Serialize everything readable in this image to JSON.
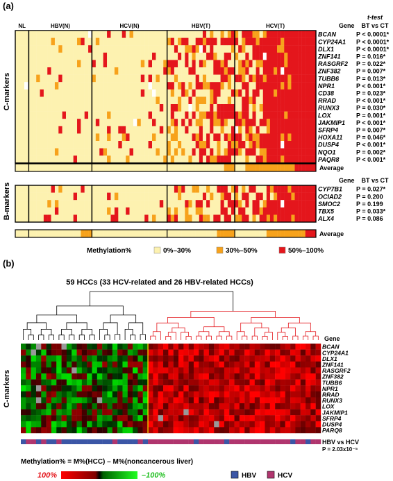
{
  "panel_a": {
    "label": "(a)",
    "group_labels": [
      "NL",
      "HBV(N)",
      "HCV(N)",
      "HBV(T)",
      "HCV(T)"
    ],
    "c_axis_label": "C-markers",
    "b_axis_label": "B-markers",
    "c_header_gene": "Gene",
    "c_header_test_title": "t-test",
    "c_header_test": "BT vs CT",
    "b_header_gene": "Gene",
    "b_header_test": "BT vs CT",
    "average_label": "Average",
    "c_genes": [
      {
        "gene": "BCAN",
        "p": "P < 0.0001*"
      },
      {
        "gene": "CYP24A1",
        "p": "P < 0.0001*"
      },
      {
        "gene": "DLX1",
        "p": "P < 0.0001*"
      },
      {
        "gene": "ZNF141",
        "p": "P = 0.016*"
      },
      {
        "gene": "RASGRF2",
        "p": "P = 0.022*"
      },
      {
        "gene": "ZNF382",
        "p": "P = 0.007*"
      },
      {
        "gene": "TUBB6",
        "p": "P = 0.013*"
      },
      {
        "gene": "NPR1",
        "p": "P < 0.001*"
      },
      {
        "gene": "CD38",
        "p": "P = 0.023*"
      },
      {
        "gene": "RRAD",
        "p": "P < 0.001*"
      },
      {
        "gene": "RUNX3",
        "p": "P = 0.030*"
      },
      {
        "gene": "LOX",
        "p": "P = 0.001*"
      },
      {
        "gene": "JAKMIP1",
        "p": "P < 0.001*"
      },
      {
        "gene": "SFRP4",
        "p": "P = 0.007*"
      },
      {
        "gene": "HOXA11",
        "p": "P = 0.046*"
      },
      {
        "gene": "DUSP4",
        "p": "P < 0.001*"
      },
      {
        "gene": "NQO1",
        "p": "P = 0.002*"
      },
      {
        "gene": "PAQR8",
        "p": "P < 0.001*"
      }
    ],
    "b_genes": [
      {
        "gene": "CYP7B1",
        "p": "P = 0.027*"
      },
      {
        "gene": "OCIAD2",
        "p": "P = 0.200"
      },
      {
        "gene": "SMOC2",
        "p": "P = 0.199"
      },
      {
        "gene": "TBX5",
        "p": "P = 0.033*"
      },
      {
        "gene": "ALX4",
        "p": "P = 0.086"
      }
    ],
    "legend_title": "Methylation%",
    "legend": [
      {
        "label": "0%–30%",
        "color": "#fdf2b0"
      },
      {
        "label": "30%–50%",
        "color": "#f7a21b"
      },
      {
        "label": "50%–100%",
        "color": "#e4161c"
      }
    ]
  },
  "panel_b": {
    "label": "(b)",
    "title": "59 HCCs (33 HCV-related and 26 HBV-related HCCs)",
    "axis_label": "C-markers",
    "gene_header": "Gene",
    "genes": [
      "BCAN",
      "CYP24A1",
      "DLX1",
      "ZNF141",
      "RASGRF2",
      "ZNF382",
      "TUBB6",
      "NPR1",
      "RRAD",
      "RUNX3",
      "LOX",
      "JAKMIP1",
      "SFRP4",
      "DUSP4",
      "PARQ8"
    ],
    "group_bar_label": "HBV vs HCV",
    "group_bar_p": "P = 2.03x10⁻⁵",
    "formula": "Methylation% = M%(HCC) – M%(noncancerous liver)",
    "scale_max": "100%",
    "scale_min": "–100%",
    "legend": [
      {
        "label": "HBV",
        "color": "#3b56a6"
      },
      {
        "label": "HCV",
        "color": "#b0356e"
      }
    ]
  },
  "colors": {
    "low": "#fdf2b0",
    "mid": "#f7a21b",
    "high": "#e4161c",
    "missing": "#ffffff",
    "tree_black": "#000000",
    "tree_red": "#e4161c"
  },
  "chart_data": [
    {
      "type": "heatmap",
      "title": "",
      "rows": [
        "BCAN",
        "CYP24A1",
        "DLX1",
        "ZNF141",
        "RASGRF2",
        "ZNF382",
        "TUBB6",
        "NPR1",
        "CD38",
        "RRAD",
        "RUNX3",
        "LOX",
        "JAKMIP1",
        "SFRP4",
        "HOXA11",
        "DUSP4",
        "NQO1",
        "PAQR8"
      ],
      "column_groups": [
        "NL",
        "HBV(N)",
        "HCV(N)",
        "HBV(T)",
        "HCV(T)"
      ],
      "categories": [
        "0%–30%",
        "30%–50%",
        "50%–100%"
      ]
    },
    {
      "type": "heatmap",
      "title": "",
      "rows": [
        "CYP7B1",
        "OCIAD2",
        "SMOC2",
        "TBX5",
        "ALX4"
      ],
      "column_groups": [
        "NL",
        "HBV(N)",
        "HCV(N)",
        "HBV(T)",
        "HCV(T)"
      ],
      "categories": [
        "0%–30%",
        "30%–50%",
        "50%–100%"
      ]
    },
    {
      "type": "heatmap",
      "title": "59 HCCs (33 HCV-related and 26 HBV-related HCCs)",
      "rows": [
        "BCAN",
        "CYP24A1",
        "DLX1",
        "ZNF141",
        "RASGRF2",
        "ZNF382",
        "TUBB6",
        "NPR1",
        "RRAD",
        "RUNX3",
        "LOX",
        "JAKMIP1",
        "SFRP4",
        "DUSP4",
        "PARQ8"
      ],
      "columns": 59,
      "range": [
        -100,
        100
      ],
      "groups": [
        "HBV",
        "HCV"
      ]
    }
  ]
}
